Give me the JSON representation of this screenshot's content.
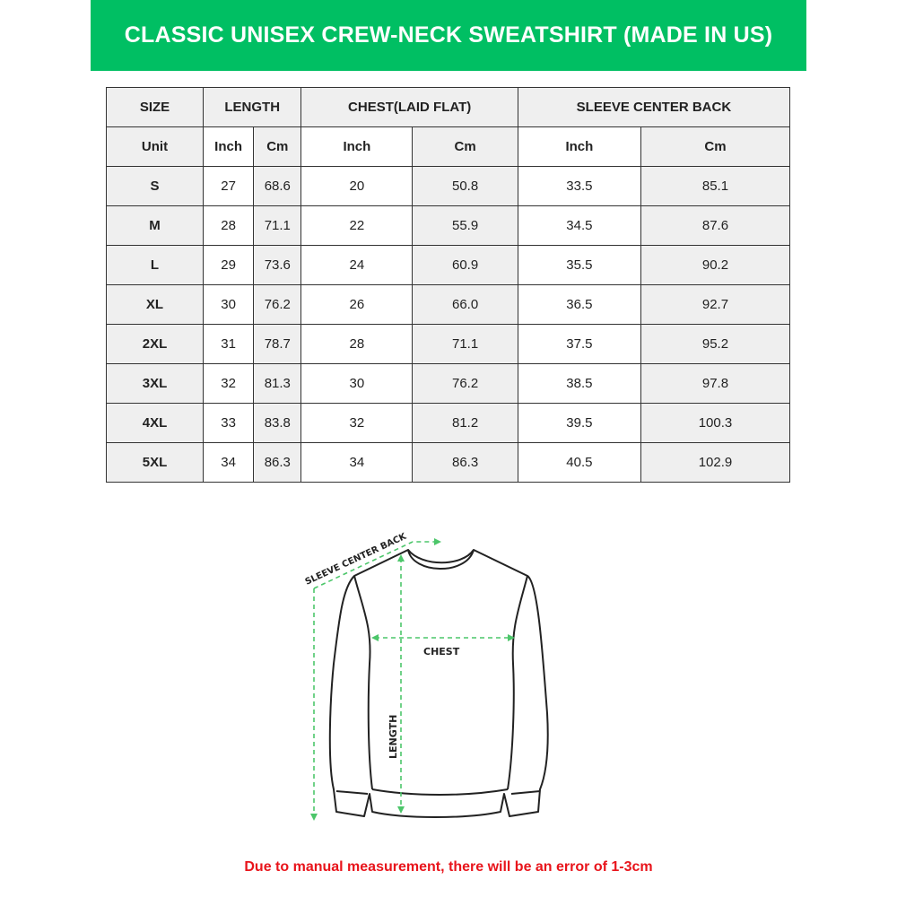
{
  "title": "CLASSIC UNISEX CREW-NECK SWEATSHIRT (MADE IN US)",
  "colors": {
    "banner": "#00bf63",
    "note": "#e8141b",
    "measure_lines": "#4cc66a"
  },
  "table": {
    "group_headers": [
      "SIZE",
      "LENGTH",
      "CHEST(LAID FLAT)",
      "SLEEVE CENTER BACK"
    ],
    "unit_row": [
      "Unit",
      "Inch",
      "Cm",
      "Inch",
      "Cm",
      "Inch",
      "Cm"
    ],
    "rows": [
      [
        "S",
        "27",
        "68.6",
        "20",
        "50.8",
        "33.5",
        "85.1"
      ],
      [
        "M",
        "28",
        "71.1",
        "22",
        "55.9",
        "34.5",
        "87.6"
      ],
      [
        "L",
        "29",
        "73.6",
        "24",
        "60.9",
        "35.5",
        "90.2"
      ],
      [
        "XL",
        "30",
        "76.2",
        "26",
        "66.0",
        "36.5",
        "92.7"
      ],
      [
        "2XL",
        "31",
        "78.7",
        "28",
        "71.1",
        "37.5",
        "95.2"
      ],
      [
        "3XL",
        "32",
        "81.3",
        "30",
        "76.2",
        "38.5",
        "97.8"
      ],
      [
        "4XL",
        "33",
        "83.8",
        "32",
        "81.2",
        "39.5",
        "100.3"
      ],
      [
        "5XL",
        "34",
        "86.3",
        "34",
        "86.3",
        "40.5",
        "102.9"
      ]
    ]
  },
  "diagram": {
    "sleeve_label": "SLEEVE CENTER BACK",
    "chest_label": "CHEST",
    "length_label": "LENGTH"
  },
  "note": "Due to manual measurement, there will be an error of 1-3cm"
}
